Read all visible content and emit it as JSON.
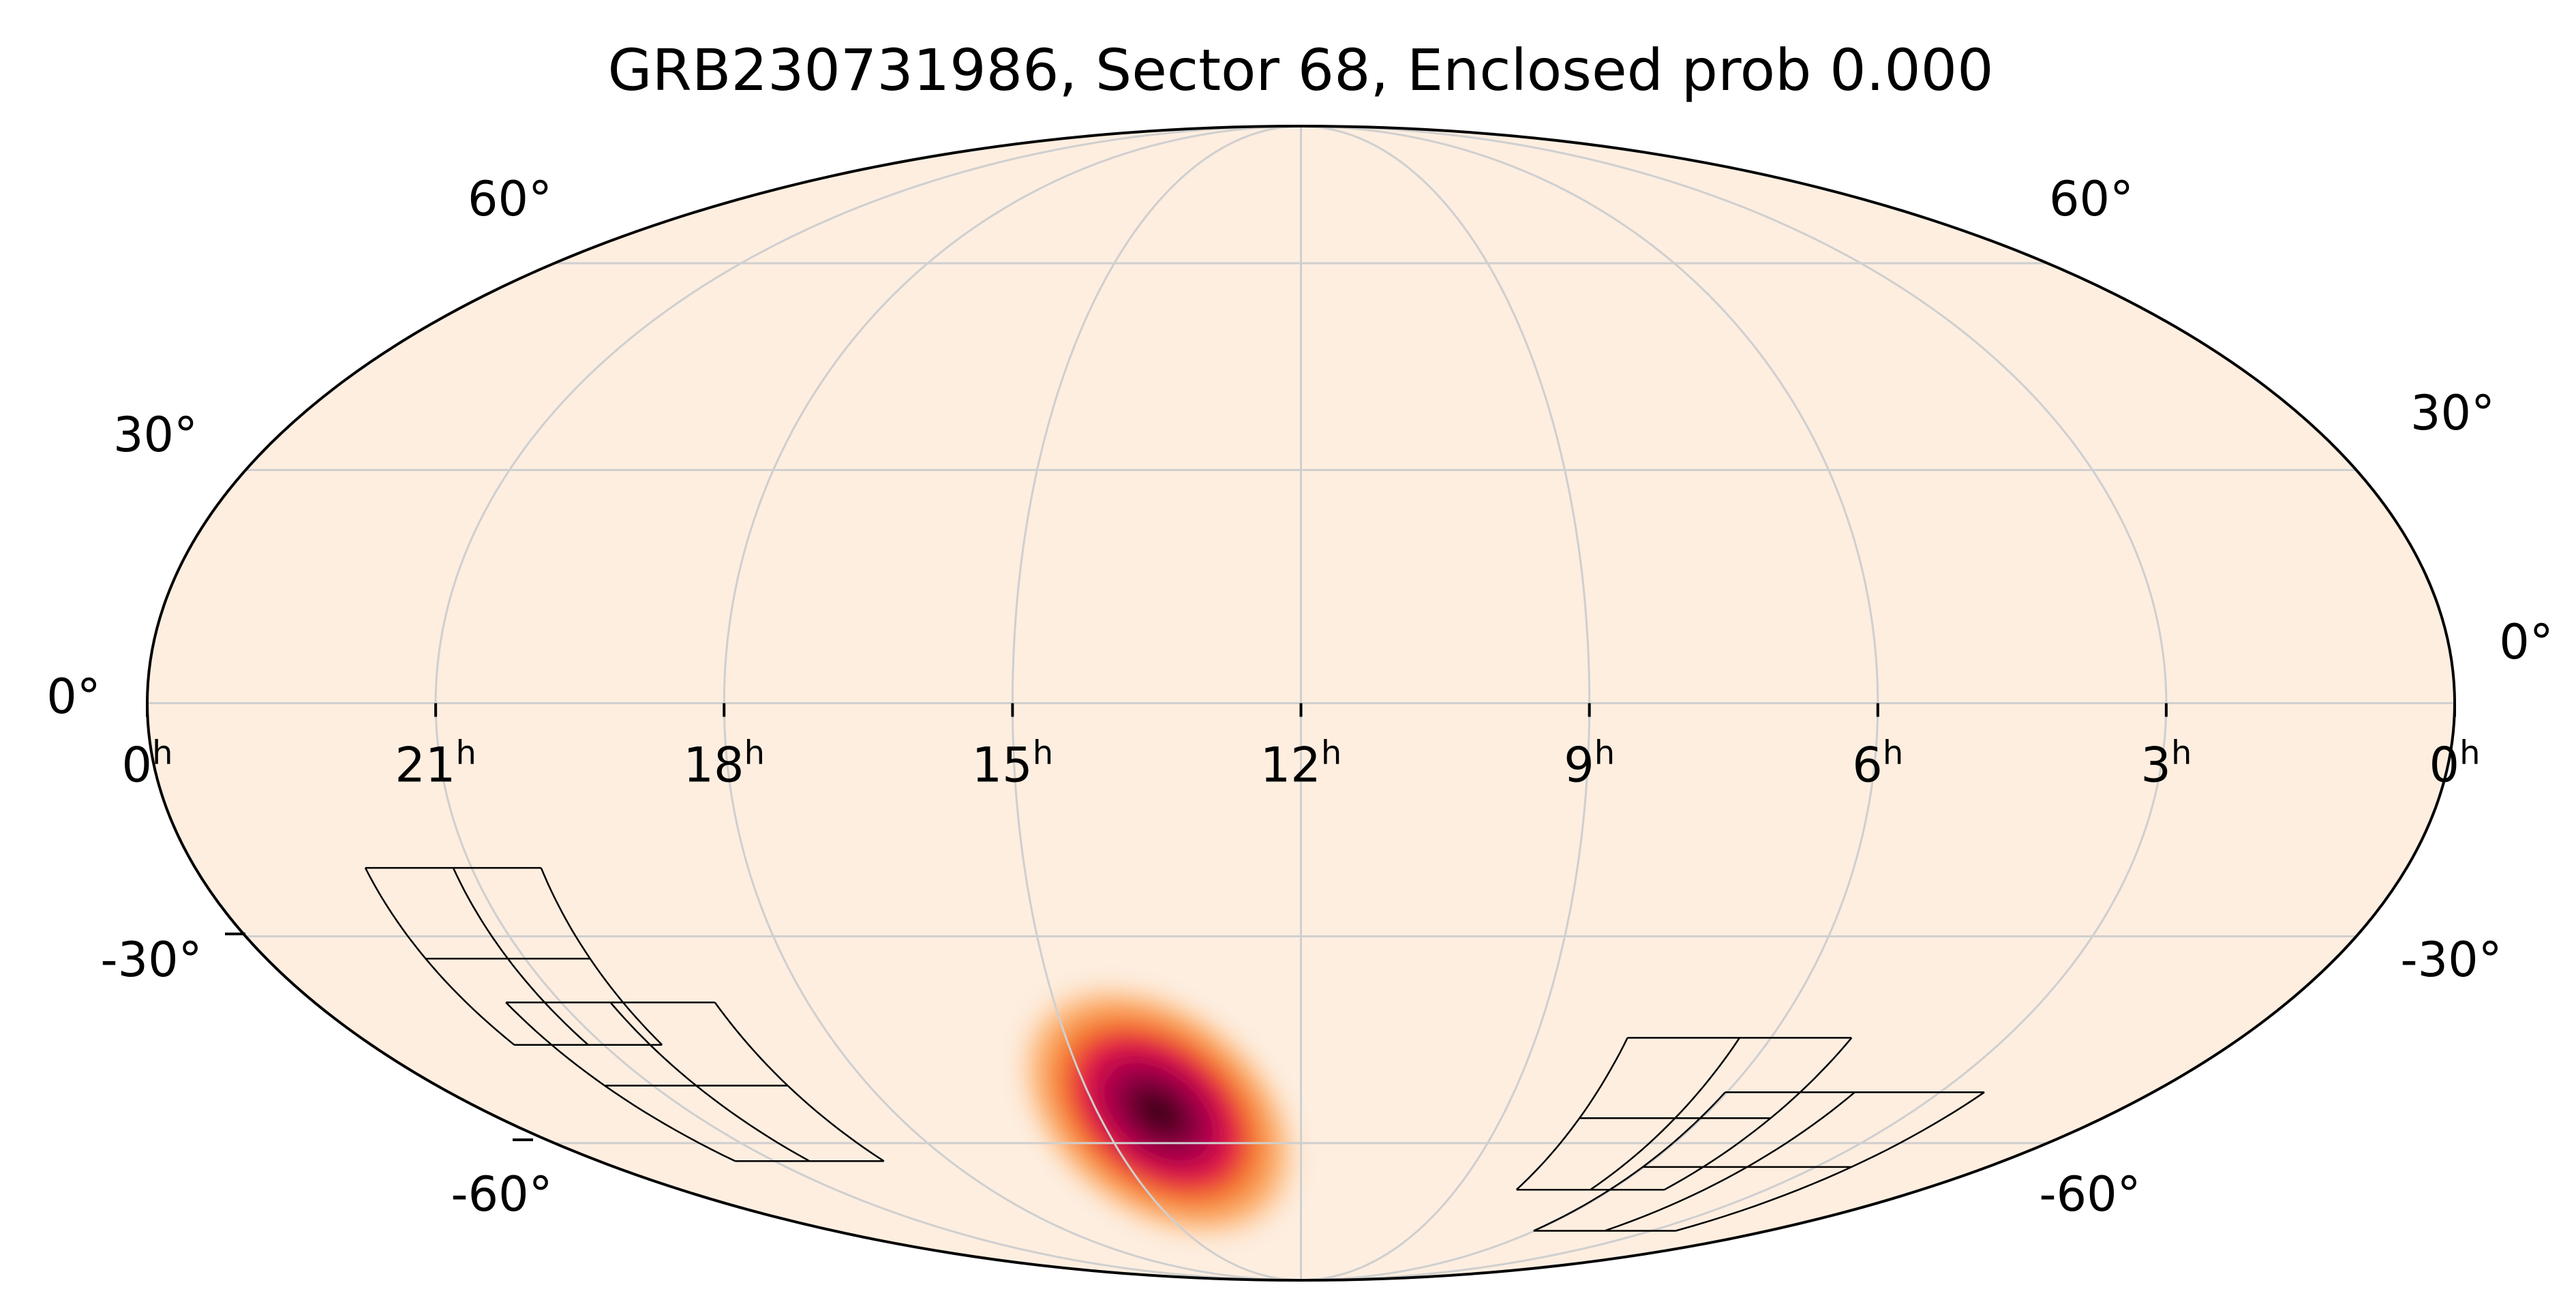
{
  "chart_data": {
    "type": "heatmap",
    "projection": "mollweide",
    "title": "GRB230731986, Sector 68, Enclosed prob 0.000",
    "ra_ticks": [
      {
        "ra_hours": 24,
        "label": "0",
        "sup": "h"
      },
      {
        "ra_hours": 21,
        "label": "21",
        "sup": "h"
      },
      {
        "ra_hours": 18,
        "label": "18",
        "sup": "h"
      },
      {
        "ra_hours": 15,
        "label": "15",
        "sup": "h"
      },
      {
        "ra_hours": 12,
        "label": "12",
        "sup": "h"
      },
      {
        "ra_hours": 9,
        "label": "9",
        "sup": "h"
      },
      {
        "ra_hours": 6,
        "label": "6",
        "sup": "h"
      },
      {
        "ra_hours": 3,
        "label": "3",
        "sup": "h"
      },
      {
        "ra_hours": 0,
        "label": "0",
        "sup": "h"
      }
    ],
    "dec_ticks_left": [
      {
        "dec": 60,
        "label": "60°"
      },
      {
        "dec": 30,
        "label": "30°"
      },
      {
        "dec": 0,
        "label": "0°"
      },
      {
        "dec": -30,
        "label": "-30°"
      },
      {
        "dec": -60,
        "label": "-60°"
      }
    ],
    "dec_ticks_right": [
      {
        "dec": 60,
        "label": "60°"
      },
      {
        "dec": 30,
        "label": "30°"
      },
      {
        "dec": 0,
        "label": "0°"
      },
      {
        "dec": -30,
        "label": "-30°"
      },
      {
        "dec": -60,
        "label": "-60°"
      }
    ],
    "meridians_hours": [
      21,
      18,
      15,
      12,
      9,
      6,
      3
    ],
    "parallels_deg": [
      60,
      30,
      0,
      -30,
      -60
    ],
    "grid": true,
    "probability_peak": {
      "ra_hours": 14.1,
      "dec": -55
    },
    "colors": {
      "background": "#fdeee0",
      "grid": "#cfcfcf",
      "outline": "#000000",
      "colormap": [
        "#fdeee0",
        "#fdb97a",
        "#f4762a",
        "#e2134a",
        "#a3004d",
        "#2b0012"
      ]
    },
    "sector_footprints": [
      {
        "name": "left-group",
        "cameras": [
          {
            "ra_hours": 21.2,
            "dec": -33
          },
          {
            "ra_hours": 20.4,
            "dec": -51
          }
        ]
      },
      {
        "name": "right-group",
        "cameras": [
          {
            "ra_hours": 6.4,
            "dec": -56
          },
          {
            "ra_hours": 4.2,
            "dec": -64
          }
        ]
      }
    ]
  }
}
